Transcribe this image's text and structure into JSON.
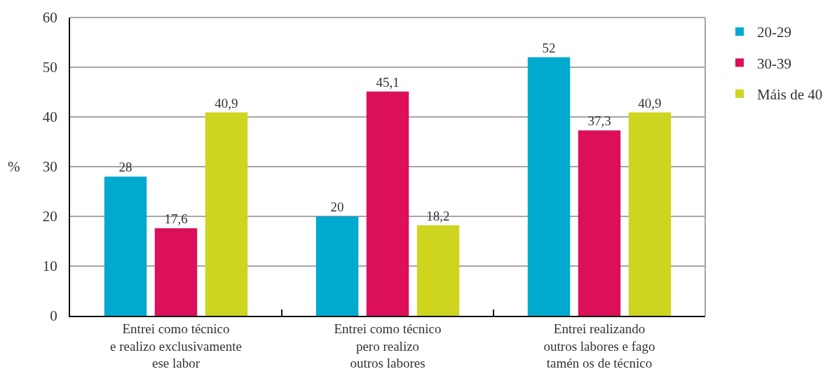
{
  "chart_data": {
    "type": "bar",
    "categories": [
      "Entrei como técnico\ne realizo exclusivamente\nese labor",
      "Entrei como técnico\npero realizo\noutros labores",
      "Entrei realizando\noutros labores e fago\ntamén os de técnico"
    ],
    "ylabel": "%",
    "series": [
      {
        "name": "20-29",
        "color": "#00a9ce",
        "values": [
          28,
          20,
          52
        ],
        "value_labels": [
          "28",
          "20",
          "52"
        ]
      },
      {
        "name": "30-39",
        "color": "#db0f5a",
        "values": [
          17.6,
          45.1,
          37.3
        ],
        "value_labels": [
          "17,6",
          "45,1",
          "37,3"
        ]
      },
      {
        "name": "Máis de 40",
        "color": "#cdd51f",
        "values": [
          40.9,
          18.2,
          40.9
        ],
        "value_labels": [
          "40,9",
          "18,2",
          "40,9"
        ]
      }
    ],
    "ylim": [
      0,
      60
    ],
    "yticks": [
      0,
      10,
      20,
      30,
      40,
      50,
      60
    ],
    "grid": "y",
    "legend": "top right"
  }
}
